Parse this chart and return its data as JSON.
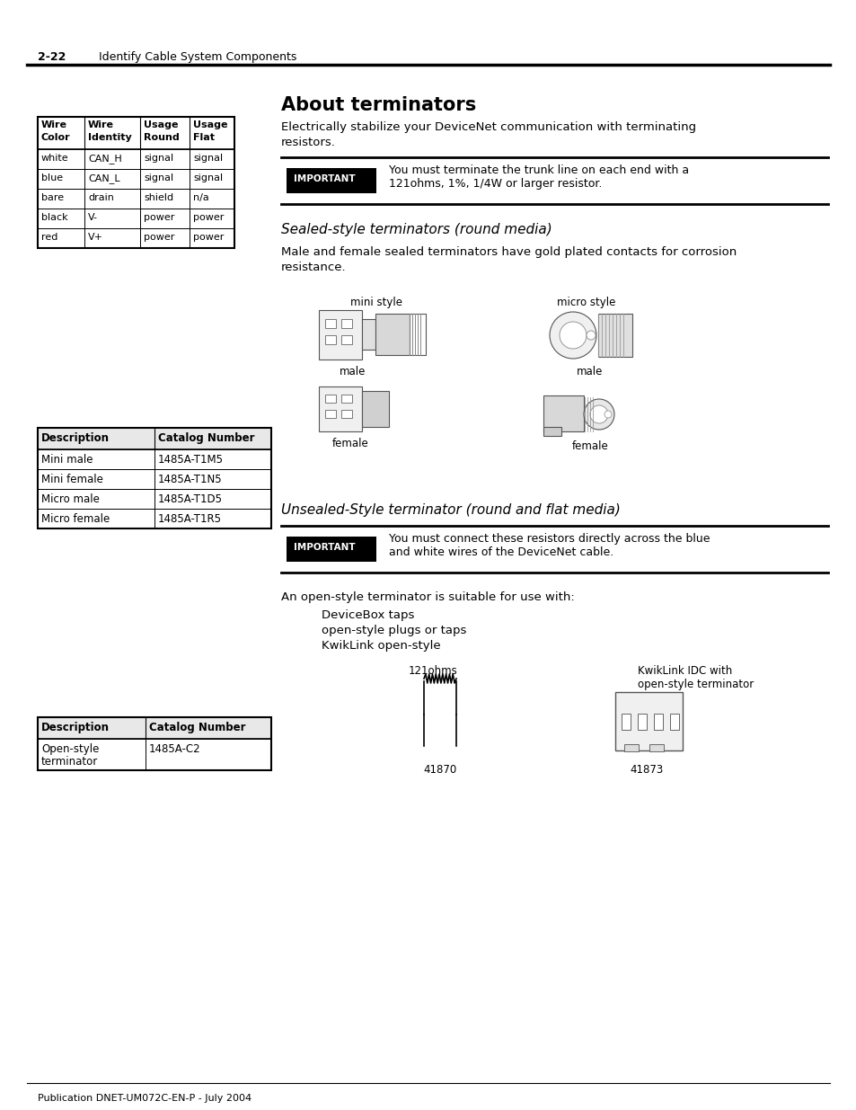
{
  "page_header_num": "2-22",
  "page_header_text": "Identify Cable System Components",
  "main_title": "About terminators",
  "intro_text": "Electrically stabilize your DeviceNet communication with terminating\nresistors.",
  "important1_text": "You must terminate the trunk line on each end with a\n121ohms, 1%, 1/4W or larger resistor.",
  "section1_title": "Sealed-style terminators (round media)",
  "section1_body": "Male and female sealed terminators have gold plated contacts for corrosion\nresistance.",
  "mini_style_label": "mini style",
  "micro_style_label": "micro style",
  "male_label1": "male",
  "female_label1": "female",
  "male_label2": "male",
  "female_label2": "female",
  "wire_table_headers": [
    "Wire\nColor",
    "Wire\nIdentity",
    "Usage\nRound",
    "Usage\nFlat"
  ],
  "wire_table_rows": [
    [
      "white",
      "CAN_H",
      "signal",
      "signal"
    ],
    [
      "blue",
      "CAN_L",
      "signal",
      "signal"
    ],
    [
      "bare",
      "drain",
      "shield",
      "n/a"
    ],
    [
      "black",
      "V-",
      "power",
      "power"
    ],
    [
      "red",
      "V+",
      "power",
      "power"
    ]
  ],
  "desc_table1_headers": [
    "Description",
    "Catalog Number"
  ],
  "desc_table1_rows": [
    [
      "Mini male",
      "1485A-T1M5"
    ],
    [
      "Mini female",
      "1485A-T1N5"
    ],
    [
      "Micro male",
      "1485A-T1D5"
    ],
    [
      "Micro female",
      "1485A-T1R5"
    ]
  ],
  "section2_title": "Unsealed-Style terminator (round and flat media)",
  "important2_text": "You must connect these resistors directly across the blue\nand white wires of the DeviceNet cable.",
  "open_style_text": "An open-style terminator is suitable for use with:",
  "bullet_items": [
    "DeviceBox taps",
    "open-style plugs or taps",
    "KwikLink open-style"
  ],
  "label_121ohms": "121ohms",
  "label_kwiklink": "KwikLink IDC with\nopen-style terminator",
  "fig_num1": "41870",
  "fig_num2": "41873",
  "desc_table2_headers": [
    "Description",
    "Catalog Number"
  ],
  "desc_table2_rows": [
    [
      "Open-style\nterminator",
      "1485A-C2"
    ]
  ],
  "footer_text": "Publication DNET-UM072C-EN-P - July 2004",
  "bg_color": "#ffffff",
  "important_bg": "#000000",
  "important_text_color": "#ffffff"
}
